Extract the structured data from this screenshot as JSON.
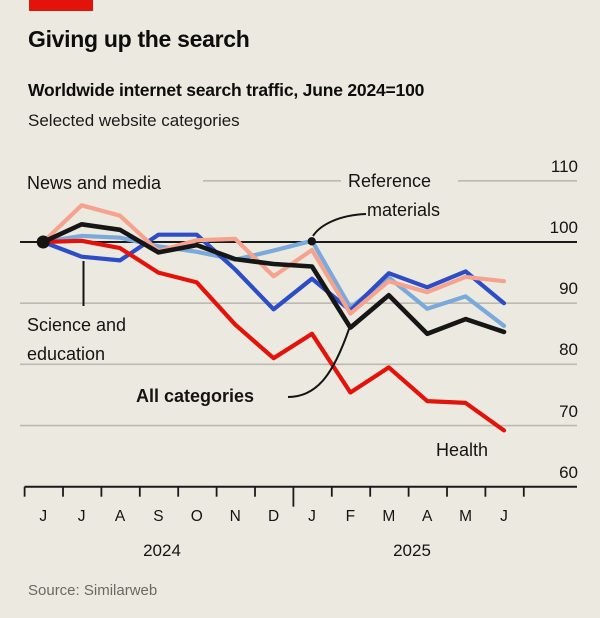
{
  "header": {
    "title": "Giving up the search",
    "subtitle": "Worldwide internet search traffic, June 2024=100",
    "description": "Selected website categories"
  },
  "source": "Source: Similarweb",
  "colors": {
    "background": "#eceae0",
    "brand_red": "#e3120b",
    "grid": "#bdbbb0",
    "axis": "#1a1a1a",
    "muted_text": "#6a6a63"
  },
  "chart_data": {
    "type": "line",
    "title": "Worldwide internet search traffic, June 2024=100",
    "subtitle": "Selected website categories",
    "x": [
      "Jun 2024",
      "Jul 2024",
      "Aug 2024",
      "Sep 2024",
      "Oct 2024",
      "Nov 2024",
      "Dec 2024",
      "Jan 2025",
      "Feb 2025",
      "Mar 2025",
      "Apr 2025",
      "May 2025",
      "Jun 2025"
    ],
    "xtick_letters": [
      "J",
      "J",
      "A",
      "S",
      "O",
      "N",
      "D",
      "J",
      "F",
      "M",
      "A",
      "M",
      "J"
    ],
    "year_labels": [
      "2024",
      "2025"
    ],
    "ylim": [
      60,
      110
    ],
    "yticks": [
      110,
      100,
      90,
      80,
      70,
      60
    ],
    "baseline_value": 100,
    "grid": true,
    "legend_position": "inline-annotations",
    "series": [
      {
        "name": "All categories",
        "label_lines": [
          "All categories"
        ],
        "color": "#161616",
        "values": [
          100,
          102.9,
          102,
          98.3,
          99.5,
          97.2,
          96.4,
          96,
          86,
          91.3,
          85,
          87.4,
          85.3
        ]
      },
      {
        "name": "News and media",
        "label_lines": [
          "News and media"
        ],
        "color": "#f5a28f",
        "values": [
          100,
          106,
          104.3,
          98.5,
          100.3,
          100.5,
          94.4,
          98.7,
          88.3,
          93.6,
          91.8,
          94.3,
          93.6
        ]
      },
      {
        "name": "Reference materials",
        "label_lines": [
          "Reference",
          "materials"
        ],
        "color": "#7aa9db",
        "values": [
          100,
          101,
          100.7,
          99.3,
          98.4,
          97.1,
          98.6,
          100.2,
          89.3,
          94.2,
          89.1,
          91.1,
          86.3
        ]
      },
      {
        "name": "Science and education",
        "label_lines": [
          "Science and",
          "education"
        ],
        "color": "#2d4dc6",
        "values": [
          100,
          97.6,
          97,
          101.2,
          101.2,
          95.5,
          89,
          94,
          88.8,
          94.9,
          92.6,
          95.2,
          90
        ]
      },
      {
        "name": "Health",
        "label_lines": [
          "Health"
        ],
        "color": "#e3120b",
        "values": [
          100,
          100.2,
          99,
          95,
          93.4,
          86.5,
          81,
          85,
          75.4,
          79.5,
          74,
          73.7,
          69.2
        ]
      }
    ]
  }
}
